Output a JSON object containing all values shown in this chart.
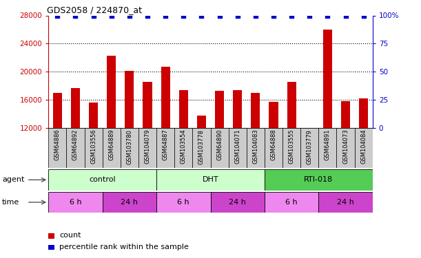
{
  "title": "GDS2058 / 224870_at",
  "samples": [
    "GSM64886",
    "GSM64892",
    "GSM103556",
    "GSM64889",
    "GSM103780",
    "GSM104079",
    "GSM64887",
    "GSM103554",
    "GSM103778",
    "GSM64890",
    "GSM104071",
    "GSM104083",
    "GSM64888",
    "GSM103555",
    "GSM103779",
    "GSM64891",
    "GSM104073",
    "GSM104084"
  ],
  "counts": [
    17000,
    17700,
    15600,
    22300,
    20100,
    18600,
    20700,
    17400,
    13800,
    17300,
    17400,
    17000,
    15700,
    18600,
    11800,
    26000,
    15800,
    16200
  ],
  "percentiles": [
    100,
    100,
    100,
    100,
    100,
    100,
    100,
    100,
    100,
    100,
    100,
    100,
    100,
    100,
    100,
    100,
    100,
    100
  ],
  "bar_color": "#cc0000",
  "percentile_color": "#0000cc",
  "ylim": [
    12000,
    28000
  ],
  "y2lim": [
    0,
    100
  ],
  "yticks": [
    12000,
    16000,
    20000,
    24000,
    28000
  ],
  "y2ticks": [
    0,
    25,
    50,
    75,
    100
  ],
  "agent_groups": [
    {
      "start": 0,
      "end": 6,
      "color": "#ccffcc",
      "label": "control"
    },
    {
      "start": 6,
      "end": 12,
      "color": "#ccffcc",
      "label": "DHT"
    },
    {
      "start": 12,
      "end": 18,
      "color": "#55cc55",
      "label": "RTI-018"
    }
  ],
  "time_blocks": [
    {
      "start": 0,
      "end": 3,
      "color": "#ee88ee",
      "label": "6 h"
    },
    {
      "start": 3,
      "end": 6,
      "color": "#cc44cc",
      "label": "24 h"
    },
    {
      "start": 6,
      "end": 9,
      "color": "#ee88ee",
      "label": "6 h"
    },
    {
      "start": 9,
      "end": 12,
      "color": "#cc44cc",
      "label": "24 h"
    },
    {
      "start": 12,
      "end": 15,
      "color": "#ee88ee",
      "label": "6 h"
    },
    {
      "start": 15,
      "end": 18,
      "color": "#cc44cc",
      "label": "24 h"
    }
  ],
  "tick_bg_color": "#cccccc",
  "legend_count_color": "#cc0000",
  "legend_pct_color": "#0000cc"
}
